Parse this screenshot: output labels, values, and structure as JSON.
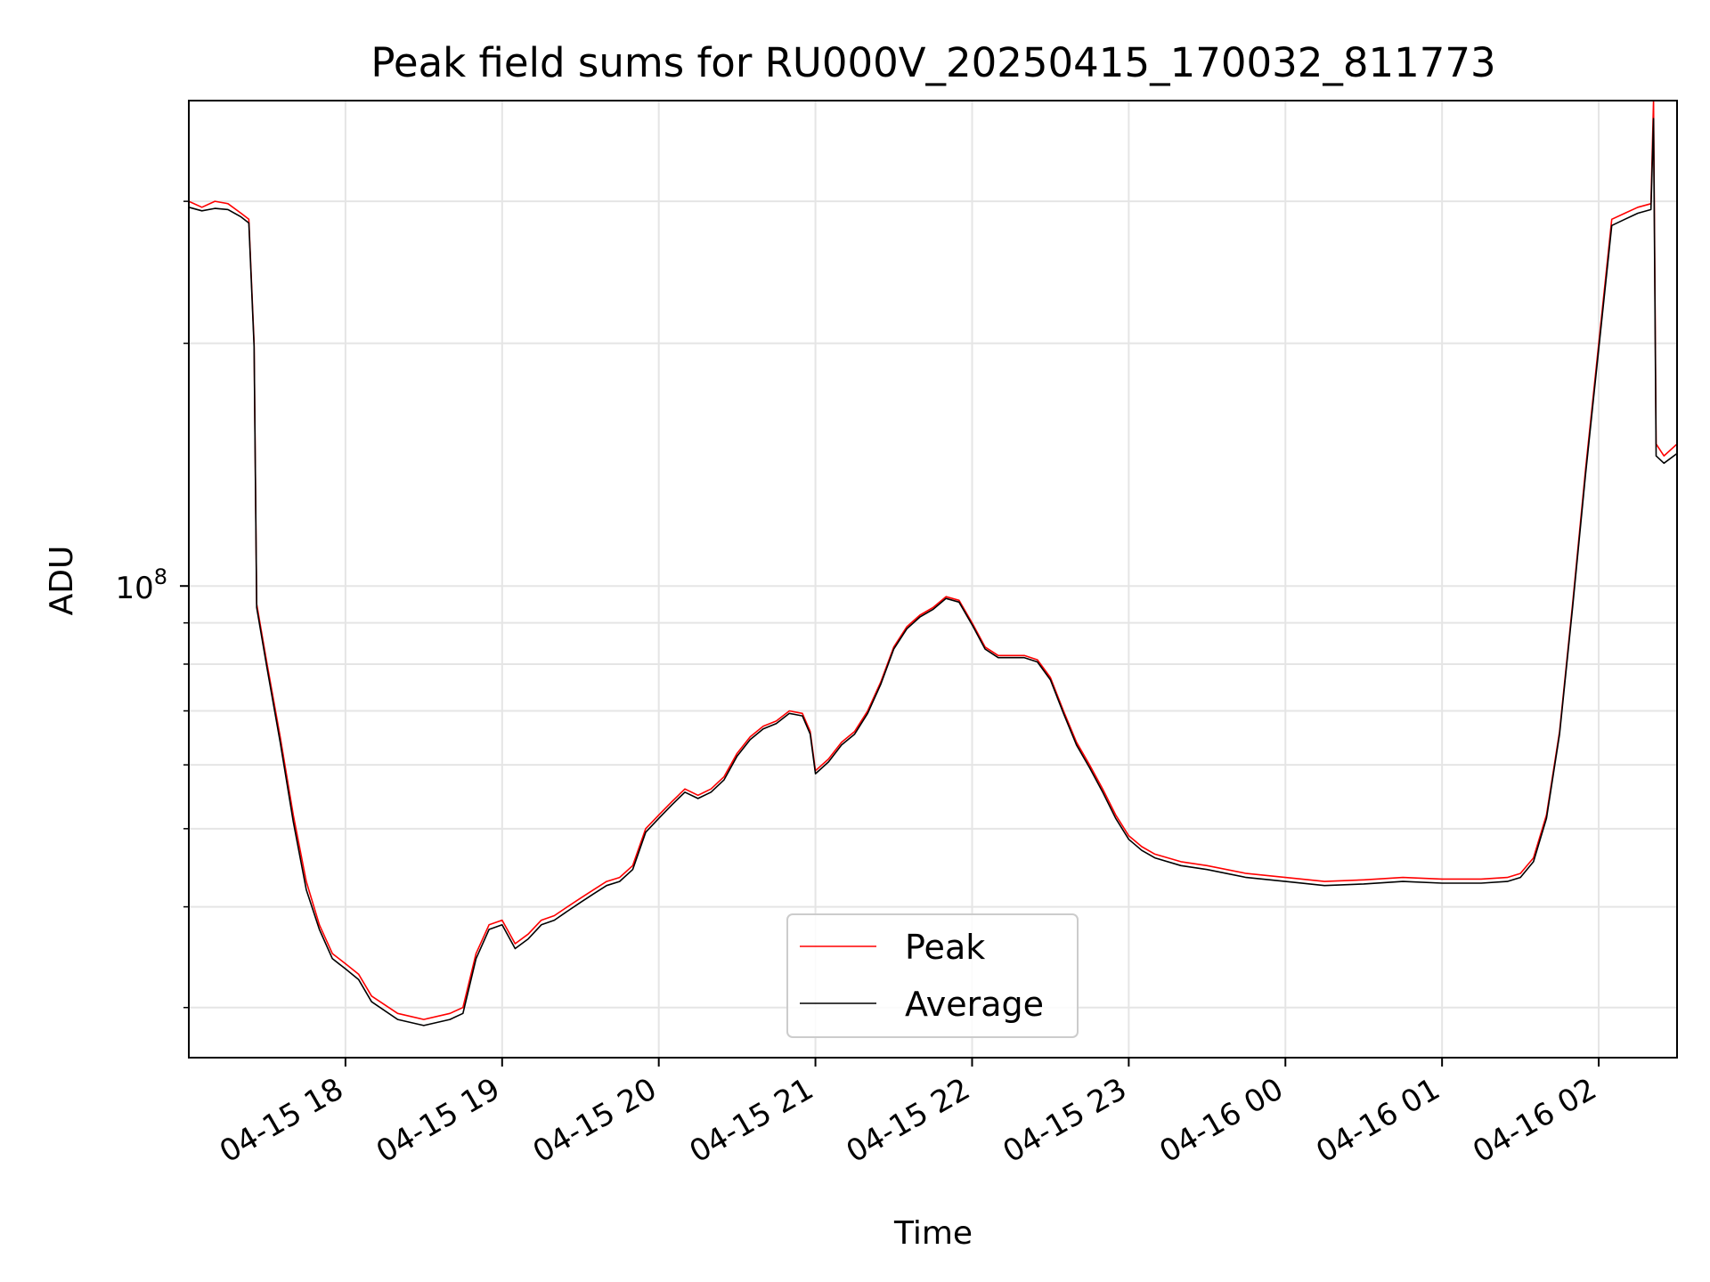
{
  "chart_data": {
    "type": "line",
    "title": "Peak field sums for RU000V_20250415_170032_811773",
    "xlabel": "Time",
    "ylabel": "ADU",
    "yscale": "log",
    "grid": true,
    "legend_position": "bottom-center",
    "xlim": [
      "2025-04-15 17:00",
      "2025-04-16 02:30"
    ],
    "ylim": [
      26000000,
      400000000
    ],
    "x_ticks": [
      {
        "label": "04-15 18",
        "time": "2025-04-15 18:00"
      },
      {
        "label": "04-15 19",
        "time": "2025-04-15 19:00"
      },
      {
        "label": "04-15 20",
        "time": "2025-04-15 20:00"
      },
      {
        "label": "04-15 21",
        "time": "2025-04-15 21:00"
      },
      {
        "label": "04-15 22",
        "time": "2025-04-15 22:00"
      },
      {
        "label": "04-15 23",
        "time": "2025-04-15 23:00"
      },
      {
        "label": "04-16 00",
        "time": "2025-04-16 00:00"
      },
      {
        "label": "04-16 01",
        "time": "2025-04-16 01:00"
      },
      {
        "label": "04-16 02",
        "time": "2025-04-16 02:00"
      }
    ],
    "y_major_ticks": [
      {
        "label_base": "10",
        "label_exp": "8",
        "value": 100000000
      }
    ],
    "y_minor_ticks": [
      30000000,
      40000000,
      50000000,
      60000000,
      70000000,
      80000000,
      90000000,
      200000000,
      300000000
    ],
    "series": [
      {
        "name": "Peak",
        "color": "#ff0000",
        "points": [
          [
            "2025-04-15 17:00",
            300000000
          ],
          [
            "2025-04-15 17:05",
            295000000
          ],
          [
            "2025-04-15 17:10",
            300000000
          ],
          [
            "2025-04-15 17:15",
            298000000
          ],
          [
            "2025-04-15 17:20",
            290000000
          ],
          [
            "2025-04-15 17:23",
            285000000
          ],
          [
            "2025-04-15 17:25",
            200000000
          ],
          [
            "2025-04-15 17:26",
            95000000
          ],
          [
            "2025-04-15 17:30",
            80000000
          ],
          [
            "2025-04-15 17:35",
            65000000
          ],
          [
            "2025-04-15 17:40",
            52000000
          ],
          [
            "2025-04-15 17:45",
            43000000
          ],
          [
            "2025-04-15 17:50",
            38000000
          ],
          [
            "2025-04-15 17:55",
            35000000
          ],
          [
            "2025-04-15 18:00",
            34000000
          ],
          [
            "2025-04-15 18:05",
            33000000
          ],
          [
            "2025-04-15 18:10",
            31000000
          ],
          [
            "2025-04-15 18:20",
            29500000
          ],
          [
            "2025-04-15 18:30",
            29000000
          ],
          [
            "2025-04-15 18:40",
            29500000
          ],
          [
            "2025-04-15 18:45",
            30000000
          ],
          [
            "2025-04-15 18:50",
            35000000
          ],
          [
            "2025-04-15 18:55",
            38000000
          ],
          [
            "2025-04-15 19:00",
            38500000
          ],
          [
            "2025-04-15 19:05",
            36000000
          ],
          [
            "2025-04-15 19:10",
            37000000
          ],
          [
            "2025-04-15 19:15",
            38500000
          ],
          [
            "2025-04-15 19:20",
            39000000
          ],
          [
            "2025-04-15 19:25",
            40000000
          ],
          [
            "2025-04-15 19:30",
            41000000
          ],
          [
            "2025-04-15 19:35",
            42000000
          ],
          [
            "2025-04-15 19:40",
            43000000
          ],
          [
            "2025-04-15 19:45",
            43500000
          ],
          [
            "2025-04-15 19:50",
            45000000
          ],
          [
            "2025-04-15 19:55",
            50000000
          ],
          [
            "2025-04-15 20:00",
            52000000
          ],
          [
            "2025-04-15 20:05",
            54000000
          ],
          [
            "2025-04-15 20:10",
            56000000
          ],
          [
            "2025-04-15 20:15",
            55000000
          ],
          [
            "2025-04-15 20:20",
            56000000
          ],
          [
            "2025-04-15 20:25",
            58000000
          ],
          [
            "2025-04-15 20:30",
            62000000
          ],
          [
            "2025-04-15 20:35",
            65000000
          ],
          [
            "2025-04-15 20:40",
            67000000
          ],
          [
            "2025-04-15 20:45",
            68000000
          ],
          [
            "2025-04-15 20:50",
            70000000
          ],
          [
            "2025-04-15 20:55",
            69500000
          ],
          [
            "2025-04-15 20:58",
            66000000
          ],
          [
            "2025-04-15 21:00",
            59000000
          ],
          [
            "2025-04-15 21:05",
            61000000
          ],
          [
            "2025-04-15 21:10",
            64000000
          ],
          [
            "2025-04-15 21:15",
            66000000
          ],
          [
            "2025-04-15 21:20",
            70000000
          ],
          [
            "2025-04-15 21:25",
            76000000
          ],
          [
            "2025-04-15 21:30",
            84000000
          ],
          [
            "2025-04-15 21:35",
            89000000
          ],
          [
            "2025-04-15 21:40",
            92000000
          ],
          [
            "2025-04-15 21:45",
            94000000
          ],
          [
            "2025-04-15 21:50",
            97000000
          ],
          [
            "2025-04-15 21:55",
            96000000
          ],
          [
            "2025-04-15 22:00",
            90000000
          ],
          [
            "2025-04-15 22:05",
            84000000
          ],
          [
            "2025-04-15 22:10",
            82000000
          ],
          [
            "2025-04-15 22:20",
            82000000
          ],
          [
            "2025-04-15 22:25",
            81000000
          ],
          [
            "2025-04-15 22:30",
            77000000
          ],
          [
            "2025-04-15 22:35",
            70000000
          ],
          [
            "2025-04-15 22:40",
            64000000
          ],
          [
            "2025-04-15 22:45",
            60000000
          ],
          [
            "2025-04-15 22:50",
            56000000
          ],
          [
            "2025-04-15 22:55",
            52000000
          ],
          [
            "2025-04-15 23:00",
            49000000
          ],
          [
            "2025-04-15 23:05",
            47500000
          ],
          [
            "2025-04-15 23:10",
            46500000
          ],
          [
            "2025-04-15 23:20",
            45500000
          ],
          [
            "2025-04-15 23:30",
            45000000
          ],
          [
            "2025-04-15 23:45",
            44000000
          ],
          [
            "2025-04-16 00:00",
            43500000
          ],
          [
            "2025-04-16 00:15",
            43000000
          ],
          [
            "2025-04-16 00:30",
            43200000
          ],
          [
            "2025-04-16 00:45",
            43500000
          ],
          [
            "2025-04-16 01:00",
            43300000
          ],
          [
            "2025-04-16 01:15",
            43300000
          ],
          [
            "2025-04-16 01:25",
            43500000
          ],
          [
            "2025-04-16 01:30",
            44000000
          ],
          [
            "2025-04-16 01:35",
            46000000
          ],
          [
            "2025-04-16 01:40",
            52000000
          ],
          [
            "2025-04-16 01:45",
            66000000
          ],
          [
            "2025-04-16 01:50",
            95000000
          ],
          [
            "2025-04-16 01:55",
            140000000
          ],
          [
            "2025-04-16 02:00",
            200000000
          ],
          [
            "2025-04-16 02:05",
            285000000
          ],
          [
            "2025-04-16 02:10",
            290000000
          ],
          [
            "2025-04-16 02:15",
            295000000
          ],
          [
            "2025-04-16 02:20",
            298000000
          ],
          [
            "2025-04-16 02:21",
            400000000
          ],
          [
            "2025-04-16 02:22",
            150000000
          ],
          [
            "2025-04-16 02:25",
            145000000
          ],
          [
            "2025-04-16 02:30",
            150000000
          ]
        ]
      },
      {
        "name": "Average",
        "color": "#000000",
        "points": [
          [
            "2025-04-15 17:00",
            295000000
          ],
          [
            "2025-04-15 17:05",
            292000000
          ],
          [
            "2025-04-15 17:10",
            294000000
          ],
          [
            "2025-04-15 17:15",
            293000000
          ],
          [
            "2025-04-15 17:20",
            287000000
          ],
          [
            "2025-04-15 17:23",
            282000000
          ],
          [
            "2025-04-15 17:25",
            198000000
          ],
          [
            "2025-04-15 17:26",
            94000000
          ],
          [
            "2025-04-15 17:30",
            79000000
          ],
          [
            "2025-04-15 17:35",
            64000000
          ],
          [
            "2025-04-15 17:40",
            51000000
          ],
          [
            "2025-04-15 17:45",
            42000000
          ],
          [
            "2025-04-15 17:50",
            37500000
          ],
          [
            "2025-04-15 17:55",
            34500000
          ],
          [
            "2025-04-15 18:00",
            33500000
          ],
          [
            "2025-04-15 18:05",
            32500000
          ],
          [
            "2025-04-15 18:10",
            30500000
          ],
          [
            "2025-04-15 18:20",
            29000000
          ],
          [
            "2025-04-15 18:30",
            28500000
          ],
          [
            "2025-04-15 18:40",
            29000000
          ],
          [
            "2025-04-15 18:45",
            29500000
          ],
          [
            "2025-04-15 18:50",
            34500000
          ],
          [
            "2025-04-15 18:55",
            37500000
          ],
          [
            "2025-04-15 19:00",
            38000000
          ],
          [
            "2025-04-15 19:05",
            35500000
          ],
          [
            "2025-04-15 19:10",
            36500000
          ],
          [
            "2025-04-15 19:15",
            38000000
          ],
          [
            "2025-04-15 19:20",
            38500000
          ],
          [
            "2025-04-15 19:25",
            39500000
          ],
          [
            "2025-04-15 19:30",
            40500000
          ],
          [
            "2025-04-15 19:35",
            41500000
          ],
          [
            "2025-04-15 19:40",
            42500000
          ],
          [
            "2025-04-15 19:45",
            43000000
          ],
          [
            "2025-04-15 19:50",
            44500000
          ],
          [
            "2025-04-15 19:55",
            49500000
          ],
          [
            "2025-04-15 20:00",
            51500000
          ],
          [
            "2025-04-15 20:05",
            53500000
          ],
          [
            "2025-04-15 20:10",
            55500000
          ],
          [
            "2025-04-15 20:15",
            54500000
          ],
          [
            "2025-04-15 20:20",
            55500000
          ],
          [
            "2025-04-15 20:25",
            57500000
          ],
          [
            "2025-04-15 20:30",
            61500000
          ],
          [
            "2025-04-15 20:35",
            64500000
          ],
          [
            "2025-04-15 20:40",
            66500000
          ],
          [
            "2025-04-15 20:45",
            67500000
          ],
          [
            "2025-04-15 20:50",
            69500000
          ],
          [
            "2025-04-15 20:55",
            69000000
          ],
          [
            "2025-04-15 20:58",
            65500000
          ],
          [
            "2025-04-15 21:00",
            58500000
          ],
          [
            "2025-04-15 21:05",
            60500000
          ],
          [
            "2025-04-15 21:10",
            63500000
          ],
          [
            "2025-04-15 21:15",
            65500000
          ],
          [
            "2025-04-15 21:20",
            69500000
          ],
          [
            "2025-04-15 21:25",
            75500000
          ],
          [
            "2025-04-15 21:30",
            83500000
          ],
          [
            "2025-04-15 21:35",
            88500000
          ],
          [
            "2025-04-15 21:40",
            91500000
          ],
          [
            "2025-04-15 21:45",
            93500000
          ],
          [
            "2025-04-15 21:50",
            96500000
          ],
          [
            "2025-04-15 21:55",
            95500000
          ],
          [
            "2025-04-15 22:00",
            89500000
          ],
          [
            "2025-04-15 22:05",
            83500000
          ],
          [
            "2025-04-15 22:10",
            81500000
          ],
          [
            "2025-04-15 22:20",
            81500000
          ],
          [
            "2025-04-15 22:25",
            80500000
          ],
          [
            "2025-04-15 22:30",
            76500000
          ],
          [
            "2025-04-15 22:35",
            69500000
          ],
          [
            "2025-04-15 22:40",
            63500000
          ],
          [
            "2025-04-15 22:45",
            59500000
          ],
          [
            "2025-04-15 22:50",
            55500000
          ],
          [
            "2025-04-15 22:55",
            51500000
          ],
          [
            "2025-04-15 23:00",
            48500000
          ],
          [
            "2025-04-15 23:05",
            47000000
          ],
          [
            "2025-04-15 23:10",
            46000000
          ],
          [
            "2025-04-15 23:20",
            45000000
          ],
          [
            "2025-04-15 23:30",
            44500000
          ],
          [
            "2025-04-15 23:45",
            43500000
          ],
          [
            "2025-04-16 00:00",
            43000000
          ],
          [
            "2025-04-16 00:15",
            42500000
          ],
          [
            "2025-04-16 00:30",
            42700000
          ],
          [
            "2025-04-16 00:45",
            43000000
          ],
          [
            "2025-04-16 01:00",
            42800000
          ],
          [
            "2025-04-16 01:15",
            42800000
          ],
          [
            "2025-04-16 01:25",
            43000000
          ],
          [
            "2025-04-16 01:30",
            43500000
          ],
          [
            "2025-04-16 01:35",
            45500000
          ],
          [
            "2025-04-16 01:40",
            51500000
          ],
          [
            "2025-04-16 01:45",
            65500000
          ],
          [
            "2025-04-16 01:50",
            94000000
          ],
          [
            "2025-04-16 01:55",
            138000000
          ],
          [
            "2025-04-16 02:00",
            197000000
          ],
          [
            "2025-04-16 02:05",
            280000000
          ],
          [
            "2025-04-16 02:10",
            285000000
          ],
          [
            "2025-04-16 02:15",
            290000000
          ],
          [
            "2025-04-16 02:20",
            293000000
          ],
          [
            "2025-04-16 02:21",
            380000000
          ],
          [
            "2025-04-16 02:22",
            145000000
          ],
          [
            "2025-04-16 02:25",
            142000000
          ],
          [
            "2025-04-16 02:30",
            146000000
          ]
        ]
      }
    ]
  }
}
